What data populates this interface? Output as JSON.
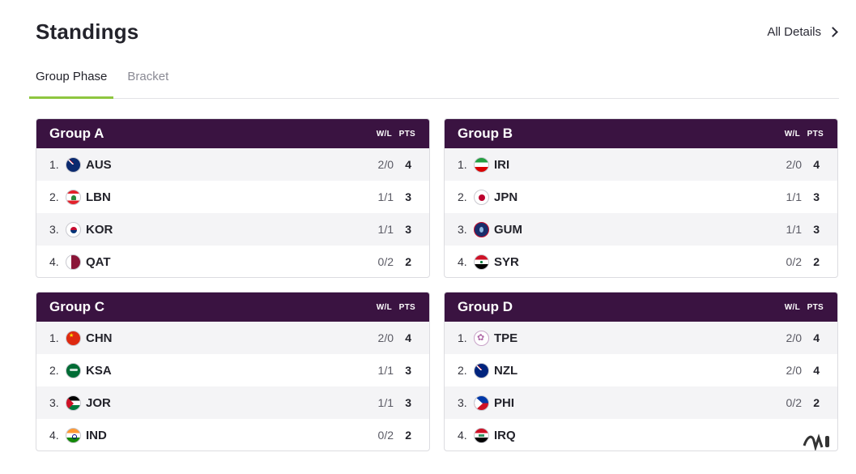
{
  "header": {
    "title": "Standings",
    "all_details": "All Details"
  },
  "tabs": [
    {
      "label": "Group Phase",
      "active": true
    },
    {
      "label": "Bracket",
      "active": false
    }
  ],
  "columns": {
    "wl": "W/L",
    "pts": "PTS"
  },
  "colors": {
    "header_bg": "#3a1341",
    "tab_accent": "#8ec63f"
  },
  "groups": [
    {
      "name": "Group A",
      "rows": [
        {
          "rank": "1.",
          "code": "AUS",
          "wl": "2/0",
          "pts": "4"
        },
        {
          "rank": "2.",
          "code": "LBN",
          "wl": "1/1",
          "pts": "3"
        },
        {
          "rank": "3.",
          "code": "KOR",
          "wl": "1/1",
          "pts": "3"
        },
        {
          "rank": "4.",
          "code": "QAT",
          "wl": "0/2",
          "pts": "2"
        }
      ]
    },
    {
      "name": "Group B",
      "rows": [
        {
          "rank": "1.",
          "code": "IRI",
          "wl": "2/0",
          "pts": "4"
        },
        {
          "rank": "2.",
          "code": "JPN",
          "wl": "1/1",
          "pts": "3"
        },
        {
          "rank": "3.",
          "code": "GUM",
          "wl": "1/1",
          "pts": "3"
        },
        {
          "rank": "4.",
          "code": "SYR",
          "wl": "0/2",
          "pts": "2"
        }
      ]
    },
    {
      "name": "Group C",
      "rows": [
        {
          "rank": "1.",
          "code": "CHN",
          "wl": "2/0",
          "pts": "4"
        },
        {
          "rank": "2.",
          "code": "KSA",
          "wl": "1/1",
          "pts": "3"
        },
        {
          "rank": "3.",
          "code": "JOR",
          "wl": "1/1",
          "pts": "3"
        },
        {
          "rank": "4.",
          "code": "IND",
          "wl": "0/2",
          "pts": "2"
        }
      ]
    },
    {
      "name": "Group D",
      "rows": [
        {
          "rank": "1.",
          "code": "TPE",
          "wl": "2/0",
          "pts": "4"
        },
        {
          "rank": "2.",
          "code": "NZL",
          "wl": "2/0",
          "pts": "4"
        },
        {
          "rank": "3.",
          "code": "PHI",
          "wl": "0/2",
          "pts": "2"
        },
        {
          "rank": "4.",
          "code": "IRQ",
          "wl": "",
          "pts": ""
        }
      ]
    }
  ]
}
